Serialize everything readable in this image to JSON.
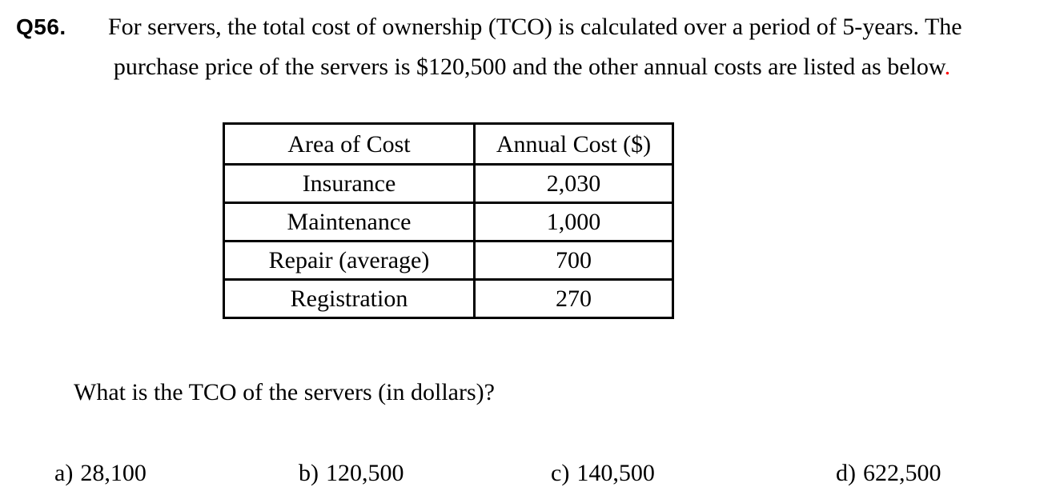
{
  "colors": {
    "background": "#ffffff",
    "text": "#000000",
    "terminator_red": "#ff0000"
  },
  "question": {
    "number": "Q56.",
    "intro_line1": "For servers, the total cost of ownership (TCO) is calculated over a period of 5-years. The",
    "intro_line2": "purchase price of the servers is $120,500 and the other annual costs are listed as below",
    "intro_line2_terminator": ".",
    "prompt": "What is the TCO of the servers (in dollars)?"
  },
  "table": {
    "headers": [
      "Area of Cost",
      "Annual Cost ($)"
    ],
    "rows": [
      {
        "area": "Insurance",
        "annual_cost": "2,030"
      },
      {
        "area": "Maintenance",
        "annual_cost": "1,000"
      },
      {
        "area": "Repair (average)",
        "annual_cost": "700"
      },
      {
        "area": "Registration",
        "annual_cost": "270"
      }
    ]
  },
  "options": [
    {
      "label": "a)",
      "value": "28,100"
    },
    {
      "label": "b)",
      "value": "120,500"
    },
    {
      "label": "c)",
      "value": "140,500"
    },
    {
      "label": "d)",
      "value": "622,500"
    }
  ]
}
